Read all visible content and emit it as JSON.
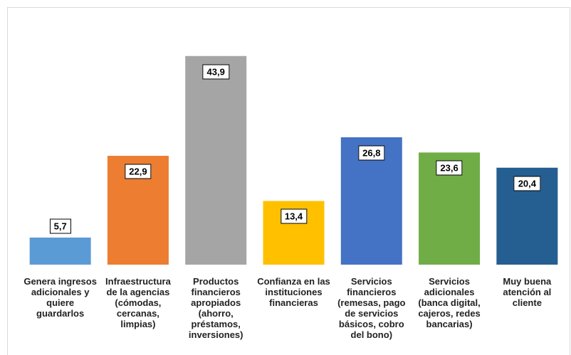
{
  "chart_data": {
    "type": "bar",
    "categories": [
      "Genera ingresos adicionales y quiere guardarlos",
      "Infraestructura de la agencias (cómodas, cercanas, limpias)",
      "Productos financieros apropiados (ahorro, préstamos, inversiones)",
      "Confianza en las instituciones financieras",
      "Servicios financieros (remesas, pago de servicios básicos, cobro del bono)",
      "Servicios adicionales (banca digital, cajeros, redes bancarias)",
      "Muy buena atención al cliente"
    ],
    "values": [
      5.7,
      22.9,
      43.9,
      13.4,
      26.8,
      23.6,
      20.4
    ],
    "value_labels": [
      "5,7",
      "22,9",
      "43,9",
      "13,4",
      "26,8",
      "23,6",
      "20,4"
    ],
    "colors": [
      "#5b9bd5",
      "#ed7d31",
      "#a5a5a5",
      "#ffc000",
      "#4472c4",
      "#70ad47",
      "#255e91"
    ],
    "ylim": [
      0,
      50
    ]
  }
}
